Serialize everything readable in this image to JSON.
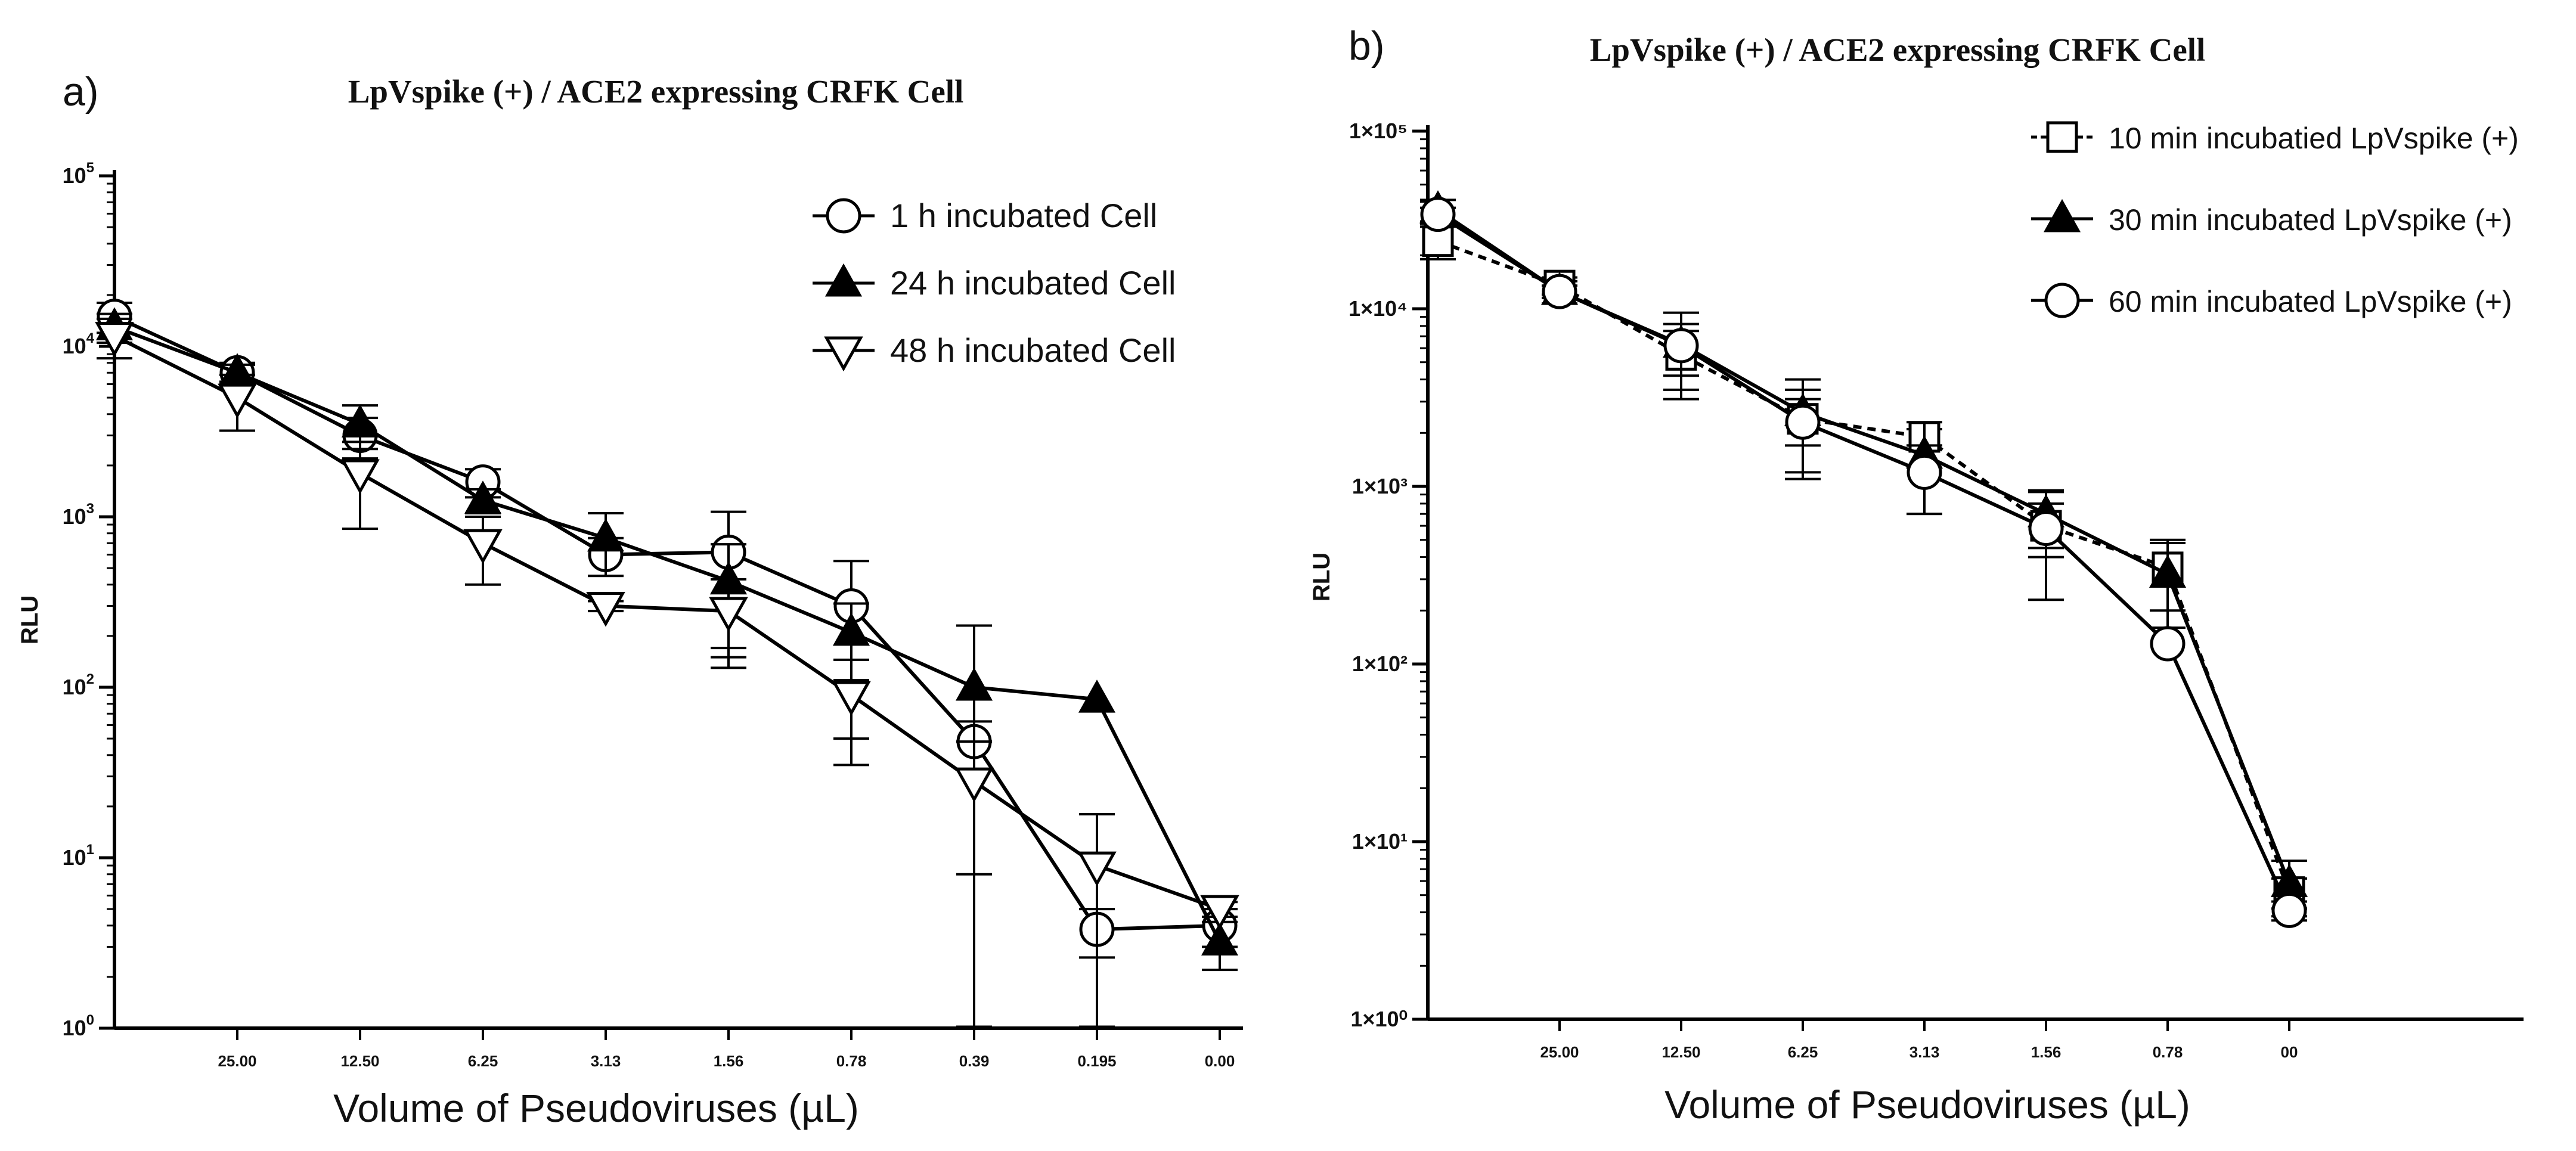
{
  "chart_data": [
    {
      "panel": "a)",
      "type": "line",
      "title": "LpVspike (+)  / ACE2 expressing CRFK Cell",
      "xlabel": "Volume of Pseudoviruses (µL)",
      "ylabel": "RLU",
      "yscale": "log",
      "ylim": [
        1,
        100000
      ],
      "y_tick_labels": [
        {
          "base": "10",
          "exp": "0"
        },
        {
          "base": "10",
          "exp": "1"
        },
        {
          "base": "10",
          "exp": "2"
        },
        {
          "base": "10",
          "exp": "3"
        },
        {
          "base": "10",
          "exp": "4"
        },
        {
          "base": "10",
          "exp": "5"
        }
      ],
      "categories": [
        "",
        "25.00",
        "12.50",
        "6.25",
        "3.13",
        "1.56",
        "0.78",
        "0.39",
        "0.195",
        "0.00"
      ],
      "legend_position": "top-right",
      "series": [
        {
          "name": "1   h incubated Cell",
          "marker": "circle-open",
          "values": [
            15000,
            7000,
            3000,
            1600,
            600,
            620,
            300,
            48,
            3.8,
            4
          ],
          "errors": [
            3000,
            1000,
            800,
            300,
            150,
            450,
            250,
            15,
            1.2,
            1
          ]
        },
        {
          "name": "24 h incubated Cell",
          "marker": "triangle-up-filled",
          "values": [
            13000,
            7000,
            3500,
            1250,
            750,
            420,
            210,
            100,
            85,
            3.2
          ],
          "errors": [
            2500,
            800,
            1000,
            200,
            300,
            270,
            100,
            130,
            0,
            1
          ]
        },
        {
          "name": "48 h incubated Cell",
          "marker": "triangle-down-open",
          "values": [
            11500,
            5000,
            1800,
            700,
            300,
            280,
            90,
            28,
            9,
            5
          ],
          "errors": [
            3000,
            1800,
            950,
            300,
            20,
            150,
            55,
            20,
            9,
            0.5
          ]
        }
      ]
    },
    {
      "panel": "b)",
      "type": "line",
      "title": "LpVspike (+)  / ACE2 expressing CRFK Cell",
      "xlabel": "Volume of Pseudoviruses (µL)",
      "ylabel": "RLU",
      "yscale": "log",
      "ylim": [
        1,
        100000
      ],
      "y_tick_labels": [
        "1×10⁰",
        "1×10¹",
        "1×10²",
        "1×10³",
        "1×10⁴",
        "1×10⁵"
      ],
      "categories": [
        "",
        "25.00",
        "12.50",
        "6.25",
        "3.13",
        "1.56",
        "0.78",
        "00"
      ],
      "legend_position": "top-right",
      "series": [
        {
          "name": "10 min incubatied LpVspike (+)",
          "marker": "square-open",
          "dashed": true,
          "values": [
            24000,
            13500,
            5500,
            2400,
            1900,
            600,
            350,
            5.2
          ],
          "errors": [
            5000,
            1500,
            2000,
            700,
            200,
            200,
            150,
            1
          ]
        },
        {
          "name": "30 min incubated LpVspike (+)",
          "marker": "triangle-up-filled",
          "dashed": false,
          "values": [
            36000,
            12500,
            6300,
            2600,
            1500,
            700,
            320,
            5.8
          ],
          "errors": [
            5000,
            1800,
            3200,
            1400,
            800,
            250,
            160,
            2
          ]
        },
        {
          "name": "60 min incubated LpVspike (+)",
          "marker": "circle-open",
          "dashed": false,
          "values": [
            34000,
            12500,
            6200,
            2300,
            1200,
            580,
            130,
            4.1
          ],
          "errors": [
            3000,
            1000,
            2000,
            1200,
            500,
            350,
            0,
            0.5
          ]
        }
      ]
    }
  ]
}
